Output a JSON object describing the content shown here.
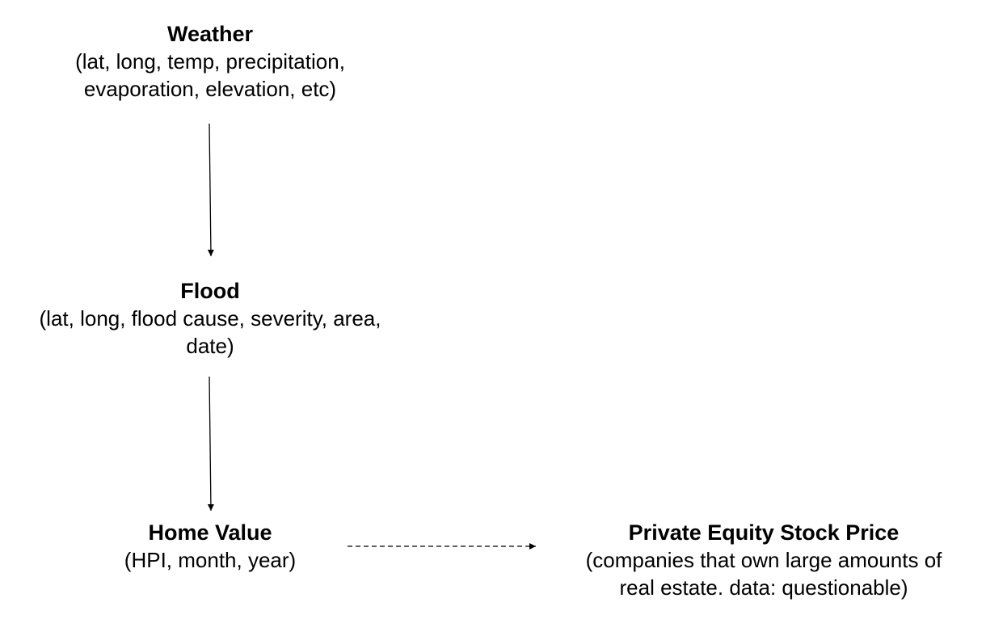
{
  "nodes": {
    "weather": {
      "title": "Weather",
      "desc_lines": [
        "(lat, long, temp, precipitation,",
        "evaporation, elevation, etc)"
      ]
    },
    "flood": {
      "title": "Flood",
      "desc_lines": [
        "(lat, long, flood cause, severity, area,",
        "date)"
      ]
    },
    "home_value": {
      "title": "Home Value",
      "desc_lines": [
        "(HPI, month, year)"
      ]
    },
    "private_equity": {
      "title": "Private Equity Stock Price",
      "desc_lines": [
        "(companies that own large amounts of",
        "real estate. data: questionable)"
      ]
    }
  },
  "edges": [
    {
      "from": "Weather",
      "to": "Flood",
      "style": "solid"
    },
    {
      "from": "Flood",
      "to": "Home Value",
      "style": "solid"
    },
    {
      "from": "Home Value",
      "to": "Private Equity Stock Price",
      "style": "dashed"
    }
  ],
  "colors": {
    "text": "#000000",
    "edge": "#000000",
    "background": "#ffffff"
  }
}
